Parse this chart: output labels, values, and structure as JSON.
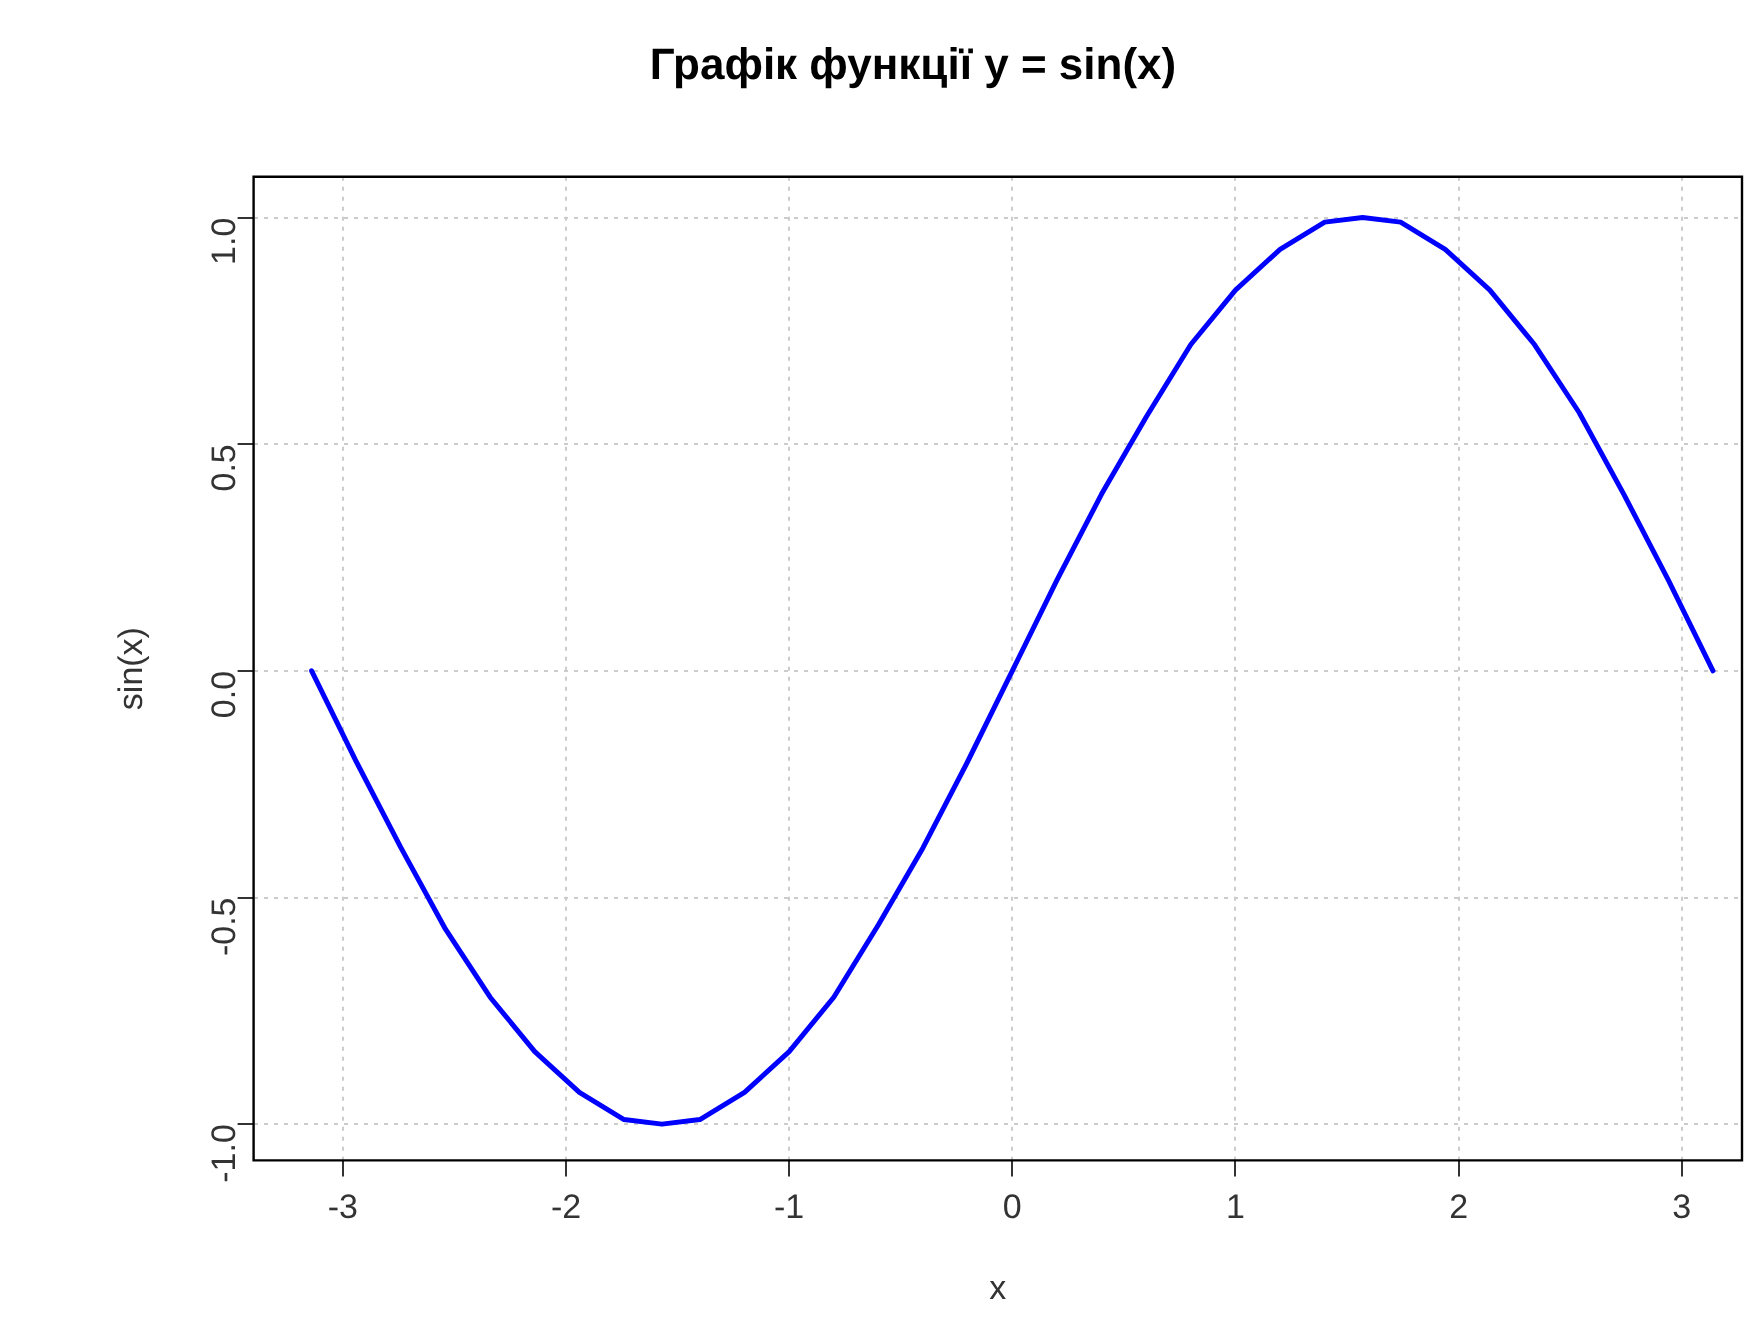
{
  "chart_data": {
    "type": "line",
    "title": "Графік функції y = sin(x)",
    "xlabel": "x",
    "ylabel": "sin(x)",
    "x": [
      -3.14,
      -2.94,
      -2.74,
      -2.54,
      -2.34,
      -2.14,
      -1.94,
      -1.74,
      -1.57,
      -1.4,
      -1.2,
      -1.0,
      -0.8,
      -0.6,
      -0.4,
      -0.2,
      0,
      0.2,
      0.4,
      0.6,
      0.8,
      1.0,
      1.2,
      1.4,
      1.57,
      1.74,
      1.94,
      2.14,
      2.34,
      2.54,
      2.74,
      2.94,
      3.14
    ],
    "series": [
      {
        "color": "#0000ff",
        "values": [
          0,
          -0.2,
          -0.39,
          -0.57,
          -0.72,
          -0.84,
          -0.93,
          -0.99,
          -1,
          -0.99,
          -0.93,
          -0.84,
          -0.72,
          -0.56,
          -0.39,
          -0.2,
          0,
          0.2,
          0.39,
          0.56,
          0.72,
          0.84,
          0.93,
          0.99,
          1,
          0.99,
          0.93,
          0.84,
          0.72,
          0.57,
          0.39,
          0.2,
          0
        ]
      }
    ],
    "xlim": [
      -3.4,
      3.27
    ],
    "ylim": [
      -1.08,
      1.09
    ],
    "xticks": [
      -3,
      -2,
      -1,
      0,
      1,
      2,
      3
    ],
    "yticks": [
      {
        "value": -1,
        "label": "-1.0"
      },
      {
        "value": -0.5,
        "label": "-0.5"
      },
      {
        "value": 0,
        "label": "0.0"
      },
      {
        "value": 0.5,
        "label": "0.5"
      },
      {
        "value": 1,
        "label": "1.0"
      }
    ],
    "grid": true,
    "marker": "none",
    "line_style": "solid",
    "legend": false
  }
}
